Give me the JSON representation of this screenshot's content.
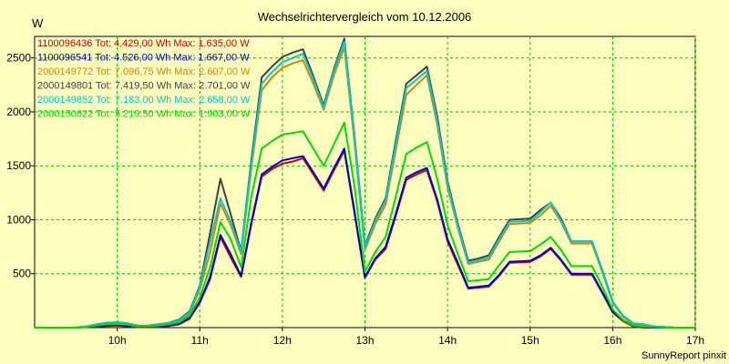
{
  "chart_data": {
    "type": "line",
    "title": "Wechselrichtervergleich vom 10.12.2006",
    "ylabel": "W",
    "xlabel": "",
    "footer": "SunnyReport pinxit",
    "xlim": [
      9.0,
      17.0
    ],
    "ylim": [
      0,
      2700
    ],
    "x_ticks": [
      10,
      11,
      12,
      13,
      14,
      15,
      16,
      17
    ],
    "x_tick_labels": [
      "10h",
      "11h",
      "12h",
      "13h",
      "14h",
      "15h",
      "16h",
      "17h"
    ],
    "y_ticks": [
      500,
      1000,
      1500,
      2000,
      2500
    ],
    "y_tick_labels": [
      "500",
      "1000",
      "1500",
      "2000",
      "2500"
    ],
    "grid": true,
    "legend_placement": "top-left",
    "x": [
      9.0,
      9.25,
      9.5,
      9.625,
      9.75,
      9.875,
      10.0,
      10.125,
      10.25,
      10.375,
      10.5,
      10.625,
      10.75,
      10.875,
      11.0,
      11.125,
      11.25,
      11.375,
      11.5,
      11.625,
      11.75,
      11.875,
      12.0,
      12.125,
      12.25,
      12.375,
      12.5,
      12.625,
      12.75,
      12.875,
      13.0,
      13.125,
      13.25,
      13.375,
      13.5,
      13.625,
      13.75,
      13.875,
      14.0,
      14.125,
      14.25,
      14.375,
      14.5,
      14.625,
      14.75,
      14.875,
      15.0,
      15.125,
      15.25,
      15.375,
      15.5,
      15.625,
      15.75,
      15.875,
      16.0,
      16.125,
      16.25,
      16.375,
      16.5,
      16.625,
      16.75,
      17.0
    ],
    "series": [
      {
        "name": "1100096436",
        "legend": "1100096436 Tot: 4.429,00 Wh Max: 1.635,00 W",
        "color": "#CC0000",
        "values": [
          0,
          0,
          0,
          5,
          10,
          15,
          18,
          12,
          5,
          5,
          10,
          15,
          30,
          80,
          230,
          450,
          840,
          650,
          470,
          960,
          1400,
          1470,
          1520,
          1540,
          1570,
          1420,
          1270,
          1460,
          1640,
          1050,
          460,
          630,
          730,
          1040,
          1370,
          1420,
          1460,
          1170,
          800,
          580,
          360,
          370,
          380,
          480,
          600,
          605,
          610,
          660,
          730,
          620,
          490,
          490,
          490,
          320,
          140,
          60,
          10,
          0,
          0,
          0,
          0,
          0
        ]
      },
      {
        "name": "1100096541",
        "legend": "1100096541 Tot: 4.526,00 Wh Max: 1.667,00 W",
        "color": "#0000CC",
        "values": [
          0,
          0,
          0,
          5,
          15,
          22,
          25,
          18,
          8,
          8,
          15,
          20,
          40,
          90,
          240,
          470,
          860,
          680,
          480,
          980,
          1420,
          1490,
          1550,
          1570,
          1590,
          1440,
          1290,
          1480,
          1660,
          1070,
          470,
          640,
          750,
          1060,
          1390,
          1440,
          1480,
          1190,
          820,
          600,
          370,
          380,
          390,
          490,
          610,
          615,
          620,
          670,
          740,
          630,
          500,
          500,
          500,
          330,
          150,
          70,
          20,
          10,
          0,
          0,
          0,
          0
        ]
      },
      {
        "name": "2000149772",
        "legend": "2000149772 Tot: 7.096,75 Wh Max: 2.607,00 W",
        "color": "#E08000",
        "values": [
          0,
          0,
          0,
          10,
          25,
          38,
          45,
          35,
          15,
          15,
          25,
          38,
          65,
          130,
          350,
          700,
          1150,
          950,
          680,
          1480,
          2200,
          2320,
          2410,
          2450,
          2480,
          2260,
          2020,
          2340,
          2600,
          1700,
          720,
          960,
          1140,
          1650,
          2160,
          2250,
          2340,
          1880,
          1300,
          920,
          590,
          610,
          630,
          800,
          960,
          965,
          970,
          1040,
          1130,
          980,
          780,
          780,
          780,
          510,
          230,
          100,
          30,
          20,
          10,
          5,
          0,
          0
        ]
      },
      {
        "name": "2000149801",
        "legend": "2000149801 Tot: 7.419,50 Wh Max: 2.701,00 W",
        "color": "#404040",
        "values": [
          0,
          0,
          0,
          10,
          30,
          45,
          50,
          40,
          18,
          18,
          30,
          45,
          75,
          150,
          390,
          880,
          1380,
          1050,
          710,
          1560,
          2320,
          2420,
          2510,
          2550,
          2580,
          2330,
          2060,
          2400,
          2680,
          1760,
          760,
          1010,
          1200,
          1740,
          2260,
          2340,
          2420,
          1960,
          1360,
          960,
          620,
          640,
          670,
          840,
          1000,
          1005,
          1010,
          1090,
          1160,
          1010,
          800,
          800,
          800,
          530,
          240,
          110,
          40,
          30,
          10,
          5,
          0,
          0
        ]
      },
      {
        "name": "2000149852",
        "legend": "2000149852 Tot: 7.183,00 Wh Max: 2.658,00 W",
        "color": "#00CCCC",
        "values": [
          0,
          0,
          0,
          10,
          30,
          42,
          50,
          38,
          16,
          16,
          28,
          42,
          70,
          140,
          380,
          800,
          1200,
          980,
          700,
          1520,
          2260,
          2370,
          2460,
          2500,
          2540,
          2300,
          2040,
          2380,
          2650,
          1740,
          740,
          990,
          1180,
          1700,
          2220,
          2300,
          2380,
          1920,
          1330,
          940,
          600,
          620,
          650,
          820,
          980,
          985,
          990,
          1070,
          1160,
          990,
          800,
          800,
          800,
          520,
          240,
          110,
          40,
          30,
          10,
          5,
          0,
          0
        ]
      },
      {
        "name": "2000150622",
        "legend": "2000150622 Tot: 5.219,50 Wh Max: 1.903,00 W",
        "color": "#00DD00",
        "values": [
          0,
          0,
          0,
          8,
          20,
          30,
          35,
          28,
          12,
          12,
          20,
          30,
          50,
          110,
          280,
          560,
          980,
          820,
          560,
          1220,
          1660,
          1730,
          1790,
          1805,
          1820,
          1660,
          1500,
          1700,
          1900,
          1300,
          520,
          700,
          840,
          1220,
          1610,
          1670,
          1720,
          1380,
          950,
          680,
          430,
          440,
          450,
          580,
          700,
          705,
          710,
          770,
          840,
          720,
          570,
          570,
          570,
          380,
          170,
          70,
          20,
          10,
          5,
          0,
          0,
          0
        ]
      }
    ]
  }
}
